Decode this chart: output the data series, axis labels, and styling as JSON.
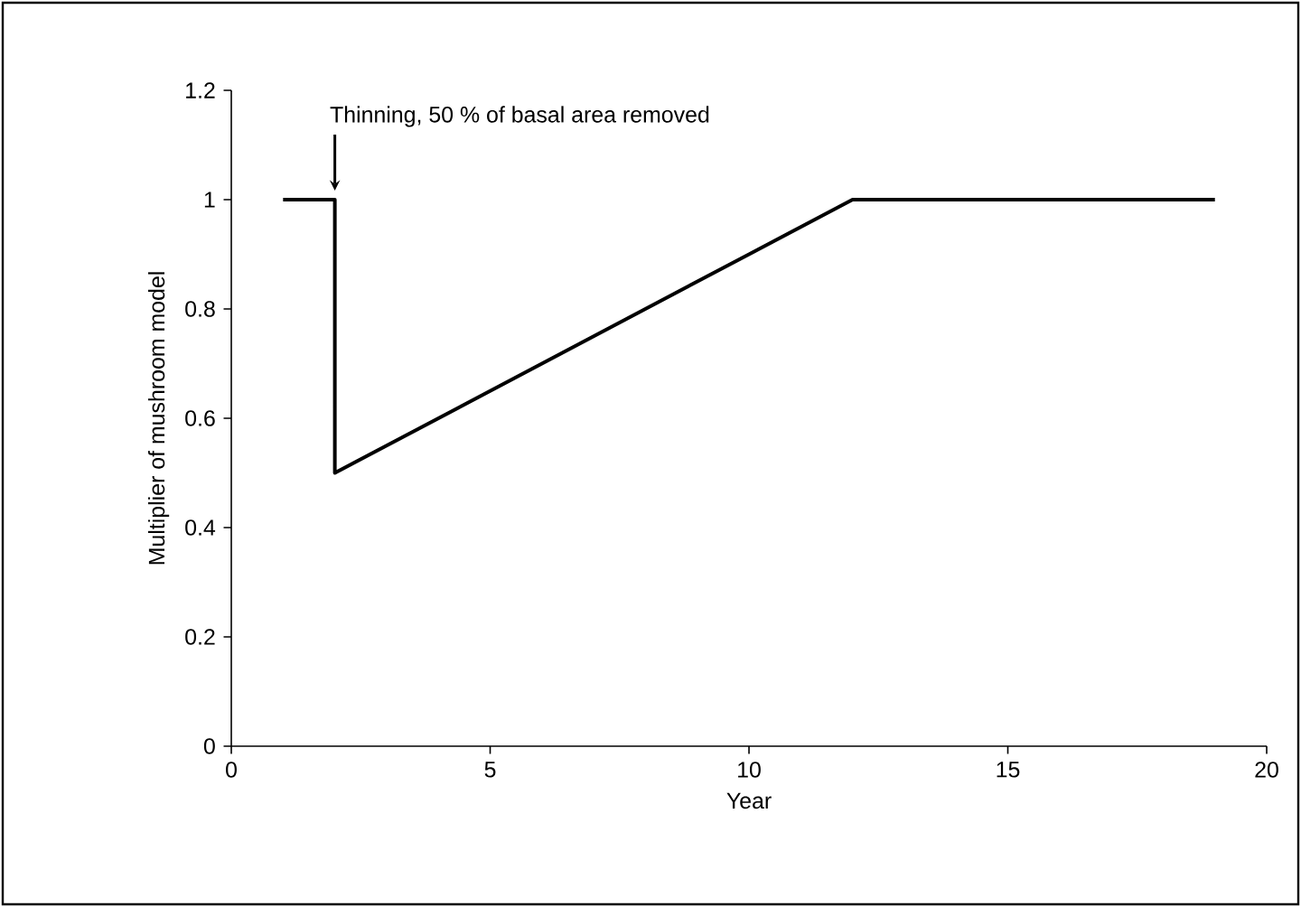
{
  "chart_data": {
    "type": "line",
    "xlabel": "Year",
    "ylabel": "Multiplier of mushroom model",
    "x": [
      1,
      2,
      2,
      4,
      6,
      8,
      10,
      11,
      12,
      19
    ],
    "series": [
      {
        "color": "#000000",
        "line_style": "solid",
        "values": [
          1,
          1,
          0.5,
          0.6,
          0.7,
          0.8,
          0.9,
          0.95,
          1,
          1
        ]
      }
    ],
    "annotations": [
      {
        "text": "Thinning, 50 % of basal area removed",
        "x": 2,
        "y": 1
      }
    ],
    "xlim": [
      0,
      20
    ],
    "xticks": [
      0,
      5,
      10,
      15,
      20
    ],
    "ylim": [
      0,
      1.2
    ],
    "yticks": [
      0,
      0.2,
      0.4,
      0.6,
      0.8,
      1,
      1.2
    ],
    "grid": false
  }
}
